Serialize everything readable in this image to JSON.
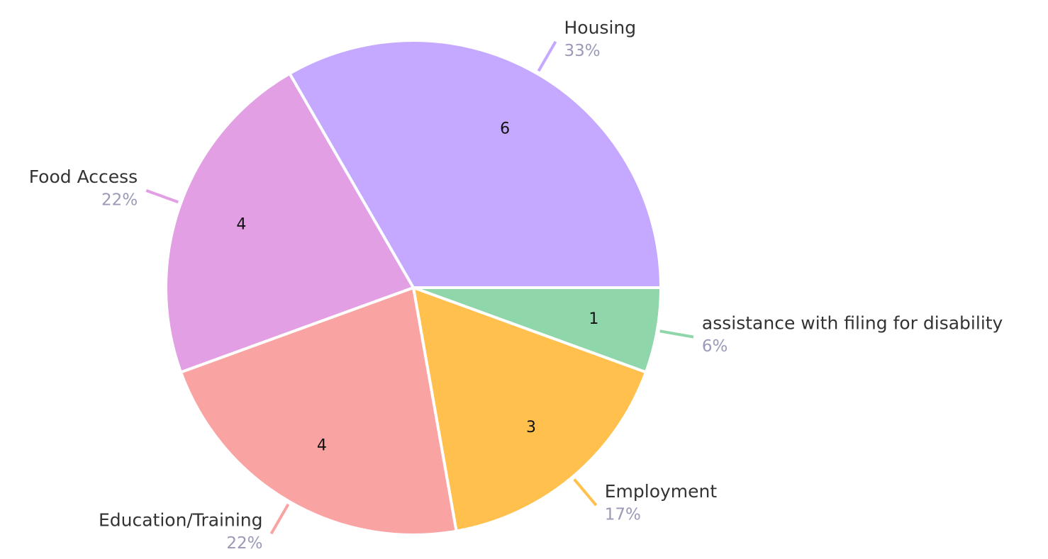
{
  "chart_data": {
    "type": "pie",
    "categories": [
      "assistance with filing for disability",
      "Employment",
      "Education/Training",
      "Food Access",
      "Housing"
    ],
    "values": [
      1,
      3,
      4,
      4,
      6
    ],
    "percent_labels": [
      "6%",
      "17%",
      "22%",
      "22%",
      "33%"
    ],
    "colors": [
      "#8fd7aa",
      "#ffc04e",
      "#f9a3a3",
      "#e29fe3",
      "#c5a8ff"
    ]
  }
}
